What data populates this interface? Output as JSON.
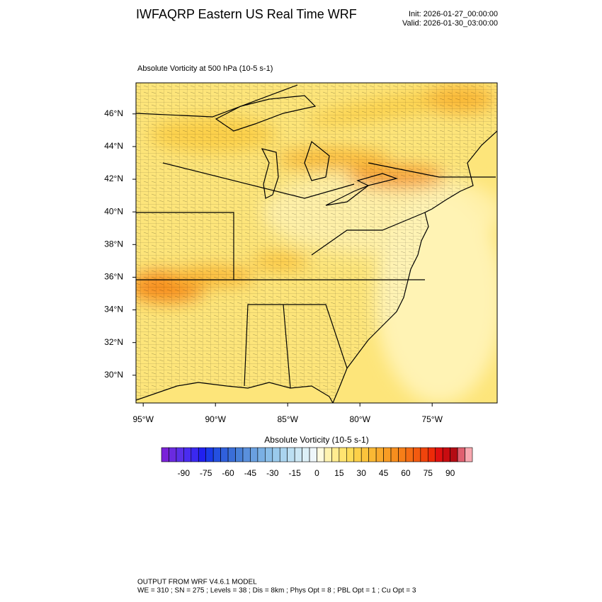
{
  "header": {
    "title": "IWFAQRP Eastern US Real Time WRF",
    "init": "Init: 2026-01-27_00:00:00",
    "valid": "Valid: 2026-01-30_03:00:00"
  },
  "map": {
    "subtitle": "Absolute Vorticity at 500 hPa   (10-5 s-1)",
    "lonlim": [
      -95.5,
      -70.5
    ],
    "latlim": [
      28.3,
      47.9
    ],
    "lonticks": [
      {
        "value": -95,
        "label": "95°W"
      },
      {
        "value": -90,
        "label": "90°W"
      },
      {
        "value": -85,
        "label": "85°W"
      },
      {
        "value": -80,
        "label": "80°W"
      },
      {
        "value": -75,
        "label": "75°W"
      }
    ],
    "latticks": [
      {
        "value": 30,
        "label": "30°N"
      },
      {
        "value": 32,
        "label": "32°N"
      },
      {
        "value": 34,
        "label": "34°N"
      },
      {
        "value": 36,
        "label": "36°N"
      },
      {
        "value": 38,
        "label": "38°N"
      },
      {
        "value": 40,
        "label": "40°N"
      },
      {
        "value": 42,
        "label": "42°N"
      },
      {
        "value": 44,
        "label": "44°N"
      },
      {
        "value": 46,
        "label": "46°N"
      }
    ]
  },
  "colorbar": {
    "title": "Absolute Vorticity  (10-5 s-1)",
    "lim": [
      -105,
      105
    ],
    "ticks": [
      -90,
      -75,
      -60,
      -45,
      -30,
      -15,
      0,
      15,
      30,
      45,
      60,
      75,
      90
    ],
    "colors": [
      "#7a22d8",
      "#6a2ae0",
      "#5a30e8",
      "#4a2cf0",
      "#3a28f0",
      "#2020f0",
      "#1a3ae8",
      "#2450e0",
      "#3060dc",
      "#3a6ed8",
      "#4880d8",
      "#5a90dc",
      "#6aa0e0",
      "#7ab0e4",
      "#8abee8",
      "#9acaec",
      "#aad4ef",
      "#bcdff2",
      "#cce7f4",
      "#dceff7",
      "#eef6fa",
      "#fffbe0",
      "#fff3b0",
      "#ffec90",
      "#ffe470",
      "#fddc58",
      "#fcd048",
      "#fbc43c",
      "#fab834",
      "#f9aa2c",
      "#f89c24",
      "#f78e1e",
      "#f67e18",
      "#f46c14",
      "#f25a10",
      "#f0440c",
      "#ee2a08",
      "#e01010",
      "#c80c10",
      "#b40c14",
      "#e06070",
      "#f8a8b0"
    ]
  },
  "footer": {
    "line1": "OUTPUT FROM WRF V4.6.1 MODEL",
    "line2": "WE = 310 ; SN = 275 ; Levels = 38 ; Dis = 8km ; Phys Opt = 8 ; PBL Opt = 1 ; Cu Opt = 3"
  }
}
